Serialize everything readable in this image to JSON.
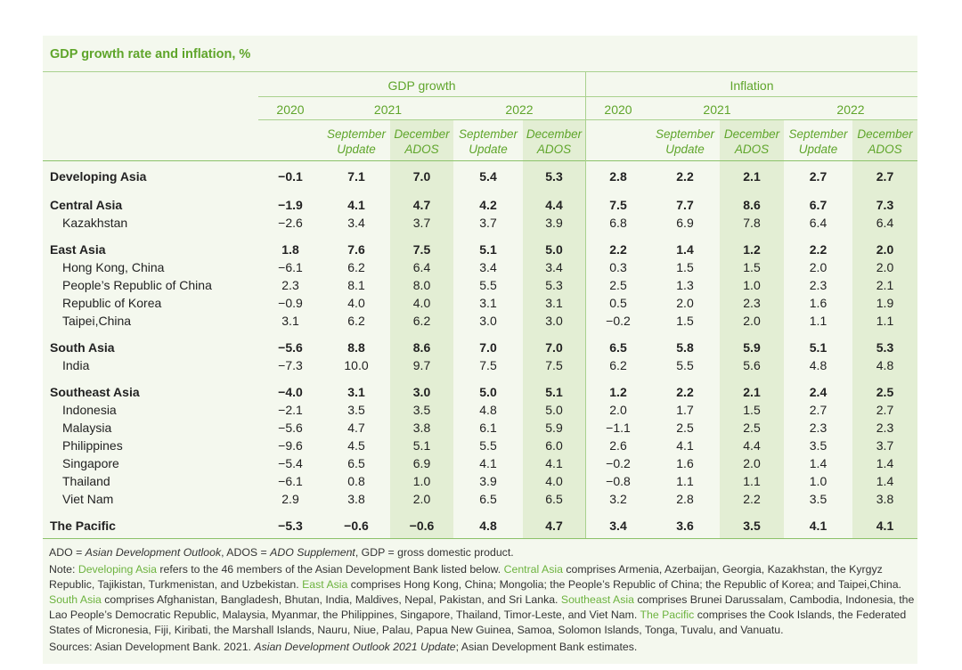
{
  "title": "GDP growth rate and inflation, %",
  "header": {
    "sections": [
      {
        "title": "GDP growth",
        "years": [
          {
            "label": "2020"
          },
          {
            "label": "2021",
            "columns": [
              {
                "lines": [
                  "September",
                  "Update"
                ]
              },
              {
                "lines": [
                  "December",
                  "ADOS"
                ]
              }
            ]
          },
          {
            "label": "2022",
            "columns": [
              {
                "lines": [
                  "September",
                  "Update"
                ]
              },
              {
                "lines": [
                  "December",
                  "ADOS"
                ]
              }
            ]
          }
        ]
      },
      {
        "title": "Inflation",
        "years": [
          {
            "label": "2020"
          },
          {
            "label": "2021",
            "columns": [
              {
                "lines": [
                  "September",
                  "Update"
                ]
              },
              {
                "lines": [
                  "December",
                  "ADOS"
                ]
              }
            ]
          },
          {
            "label": "2022",
            "columns": [
              {
                "lines": [
                  "September",
                  "Update"
                ]
              },
              {
                "lines": [
                  "December",
                  "ADOS"
                ]
              }
            ]
          }
        ]
      }
    ]
  },
  "table": {
    "rows": [
      {
        "name": "Developing Asia",
        "values": [
          "−0.1",
          "7.1",
          "7.0",
          "5.4",
          "5.3",
          "2.8",
          "2.2",
          "2.1",
          "2.7",
          "2.7"
        ]
      },
      {
        "name": "Central Asia",
        "values": [
          "−1.9",
          "4.1",
          "4.7",
          "4.2",
          "4.4",
          "7.5",
          "7.7",
          "8.6",
          "6.7",
          "7.3"
        ],
        "countries": [
          {
            "name": "Kazakhstan",
            "values": [
              "−2.6",
              "3.4",
              "3.7",
              "3.7",
              "3.9",
              "6.8",
              "6.9",
              "7.8",
              "6.4",
              "6.4"
            ]
          }
        ]
      },
      {
        "name": "East Asia",
        "values": [
          "1.8",
          "7.6",
          "7.5",
          "5.1",
          "5.0",
          "2.2",
          "1.4",
          "1.2",
          "2.2",
          "2.0"
        ],
        "countries": [
          {
            "name": "Hong Kong, China",
            "values": [
              "−6.1",
              "6.2",
              "6.4",
              "3.4",
              "3.4",
              "0.3",
              "1.5",
              "1.5",
              "2.0",
              "2.0"
            ]
          },
          {
            "name": "People’s Republic of China",
            "values": [
              "2.3",
              "8.1",
              "8.0",
              "5.5",
              "5.3",
              "2.5",
              "1.3",
              "1.0",
              "2.3",
              "2.1"
            ]
          },
          {
            "name": "Republic of Korea",
            "values": [
              "−0.9",
              "4.0",
              "4.0",
              "3.1",
              "3.1",
              "0.5",
              "2.0",
              "2.3",
              "1.6",
              "1.9"
            ]
          },
          {
            "name": "Taipei,China",
            "values": [
              "3.1",
              "6.2",
              "6.2",
              "3.0",
              "3.0",
              "−0.2",
              "1.5",
              "2.0",
              "1.1",
              "1.1"
            ]
          }
        ]
      },
      {
        "name": "South Asia",
        "values": [
          "−5.6",
          "8.8",
          "8.6",
          "7.0",
          "7.0",
          "6.5",
          "5.8",
          "5.9",
          "5.1",
          "5.3"
        ],
        "countries": [
          {
            "name": "India",
            "values": [
              "−7.3",
              "10.0",
              "9.7",
              "7.5",
              "7.5",
              "6.2",
              "5.5",
              "5.6",
              "4.8",
              "4.8"
            ]
          }
        ]
      },
      {
        "name": "Southeast Asia",
        "values": [
          "−4.0",
          "3.1",
          "3.0",
          "5.0",
          "5.1",
          "1.2",
          "2.2",
          "2.1",
          "2.4",
          "2.5"
        ],
        "countries": [
          {
            "name": "Indonesia",
            "values": [
              "−2.1",
              "3.5",
              "3.5",
              "4.8",
              "5.0",
              "2.0",
              "1.7",
              "1.5",
              "2.7",
              "2.7"
            ]
          },
          {
            "name": "Malaysia",
            "values": [
              "−5.6",
              "4.7",
              "3.8",
              "6.1",
              "5.9",
              "−1.1",
              "2.5",
              "2.5",
              "2.3",
              "2.3"
            ]
          },
          {
            "name": "Philippines",
            "values": [
              "−9.6",
              "4.5",
              "5.1",
              "5.5",
              "6.0",
              "2.6",
              "4.1",
              "4.4",
              "3.5",
              "3.7"
            ]
          },
          {
            "name": "Singapore",
            "values": [
              "−5.4",
              "6.5",
              "6.9",
              "4.1",
              "4.1",
              "−0.2",
              "1.6",
              "2.0",
              "1.4",
              "1.4"
            ]
          },
          {
            "name": "Thailand",
            "values": [
              "−6.1",
              "0.8",
              "1.0",
              "3.9",
              "4.0",
              "−0.8",
              "1.1",
              "1.1",
              "1.0",
              "1.4"
            ]
          },
          {
            "name": "Viet Nam",
            "values": [
              "2.9",
              "3.8",
              "2.0",
              "6.5",
              "6.5",
              "3.2",
              "2.8",
              "2.2",
              "3.5",
              "3.8"
            ]
          }
        ]
      },
      {
        "name": "The Pacific",
        "values": [
          "−5.3",
          "−0.6",
          "−0.6",
          "4.8",
          "4.7",
          "3.4",
          "3.6",
          "3.5",
          "4.1",
          "4.1"
        ]
      }
    ]
  },
  "notes": [
    [
      {
        "text": "ADO = "
      },
      {
        "em": "Asian Development Outlook"
      },
      {
        "text": ", ADOS = "
      },
      {
        "em": "ADO Supplement"
      },
      {
        "text": ", GDP = gross domestic product."
      }
    ],
    [
      {
        "text": "Note: "
      },
      {
        "term": "Developing Asia"
      },
      {
        "text": " refers to the 46 members of the Asian Development Bank listed below. "
      },
      {
        "term": "Central Asia"
      },
      {
        "text": " comprises Armenia, Azerbaijan, Georgia, Kazakhstan, the Kyrgyz Republic, Tajikistan, Turkmenistan, and Uzbekistan. "
      },
      {
        "term": "East Asia"
      },
      {
        "text": " comprises Hong Kong, China; Mongolia; the People’s Republic of China; the Republic of Korea; and Taipei,China. "
      },
      {
        "term": "South Asia"
      },
      {
        "text": " comprises Afghanistan, Bangladesh, Bhutan, India, Maldives, Nepal, Pakistan, and Sri Lanka. "
      },
      {
        "term": "Southeast Asia"
      },
      {
        "text": " comprises Brunei Darussalam, Cambodia, Indonesia, the Lao People’s Democratic Republic, Malaysia, Myanmar, the Philippines, Singapore, Thailand, Timor-Leste, and Viet Nam. "
      },
      {
        "term": "The Pacific"
      },
      {
        "text": " comprises the Cook Islands, the Federated States of Micronesia, Fiji, Kiribati, the Marshall Islands, Nauru, Niue, Palau, Papua New Guinea, Samoa, Solomon Islands, Tonga, Tuvalu, and Vanuatu."
      }
    ],
    [
      {
        "text": "Sources: Asian Development Bank. 2021. "
      },
      {
        "em": "Asian Development Outlook 2021 Update"
      },
      {
        "text": "; Asian Development Bank estimates."
      }
    ]
  ]
}
